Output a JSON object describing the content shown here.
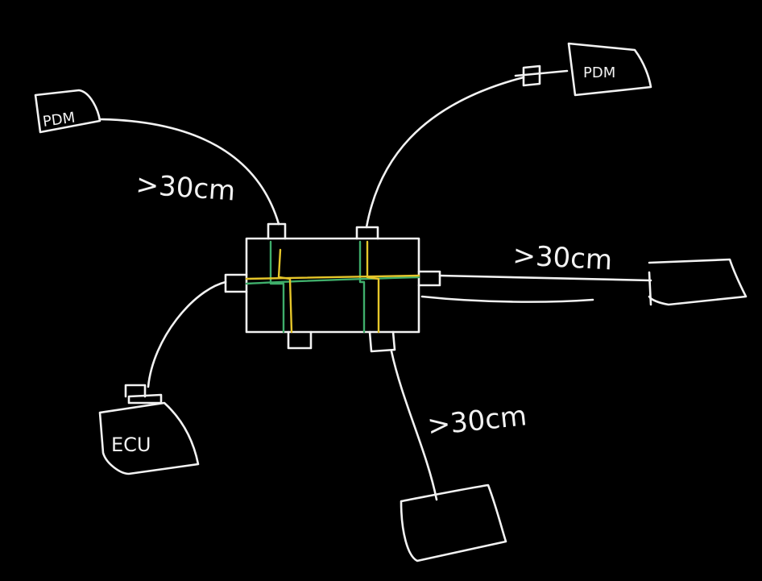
{
  "diagram": {
    "background": "#000000",
    "colors": {
      "ink": "#f2f2f2",
      "yellow": "#e6c62a",
      "green": "#3fae6b"
    },
    "labels": {
      "length_top_left": ">30cm",
      "length_right": ">30cm",
      "length_bottom": ">30cm",
      "node_top_left": "PDM",
      "node_top_right": "PDM",
      "node_bottom_left": "ECU"
    }
  }
}
